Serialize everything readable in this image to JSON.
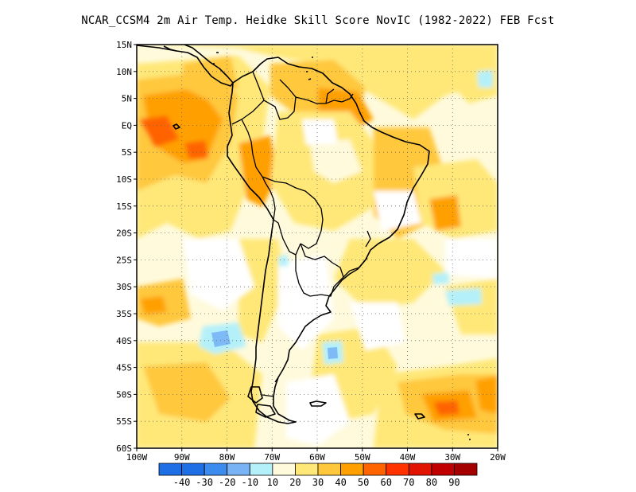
{
  "title": "NCAR_CCSM4  2m Air Temp. Heidke Skill Score NovIC (1982-2022) FEB Fcst",
  "map": {
    "lat_labels": [
      "15N",
      "10N",
      "5N",
      "EQ",
      "5S",
      "10S",
      "15S",
      "20S",
      "25S",
      "30S",
      "35S",
      "40S",
      "45S",
      "50S",
      "55S",
      "60S"
    ],
    "lon_labels": [
      "100W",
      "90W",
      "80W",
      "70W",
      "60W",
      "50W",
      "40W",
      "30W",
      "20W"
    ],
    "grid": "dotted",
    "region": "South America"
  },
  "colorbar": {
    "labels": [
      "-40",
      "-30",
      "-20",
      "-10",
      "10",
      "20",
      "30",
      "40",
      "50",
      "60",
      "70",
      "80",
      "90"
    ],
    "colors": [
      "#1e6ee6",
      "#3c8cf0",
      "#78b4f5",
      "#b4f0fa",
      "#fffadc",
      "#ffe878",
      "#ffc83c",
      "#ffa000",
      "#ff6400",
      "#ff3200",
      "#e11400",
      "#c00000",
      "#a50000"
    ]
  }
}
